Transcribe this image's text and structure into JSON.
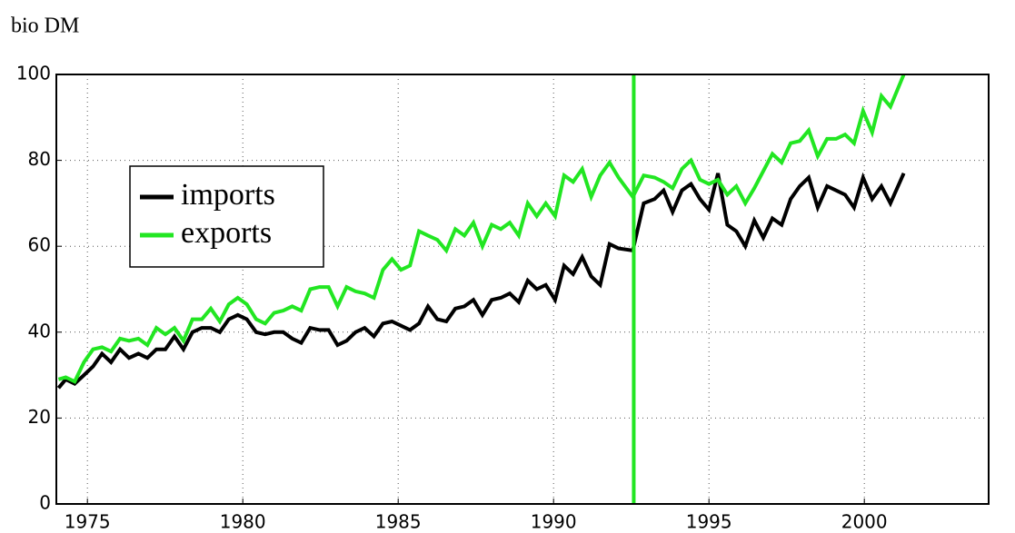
{
  "chart_data": {
    "type": "line",
    "title": "bio DM",
    "x": [
      1974.07,
      1974.3,
      1974.59,
      1974.89,
      1975.18,
      1975.47,
      1975.76,
      1976.05,
      1976.34,
      1976.64,
      1976.93,
      1977.22,
      1977.51,
      1977.8,
      1978.09,
      1978.38,
      1978.68,
      1978.97,
      1979.26,
      1979.55,
      1979.84,
      1980.13,
      1980.43,
      1980.72,
      1981.01,
      1981.3,
      1981.59,
      1981.88,
      1982.17,
      1982.47,
      1982.76,
      1983.05,
      1983.34,
      1983.63,
      1983.92,
      1984.22,
      1984.51,
      1984.8,
      1985.09,
      1985.38,
      1985.67,
      1985.96,
      1986.26,
      1986.55,
      1986.84,
      1987.13,
      1987.42,
      1987.71,
      1988.01,
      1988.3,
      1988.59,
      1988.88,
      1989.17,
      1989.46,
      1989.75,
      1990.05,
      1990.34,
      1990.63,
      1990.92,
      1991.21,
      1991.5,
      1991.8,
      1992.09,
      1992.55,
      1992.9,
      1993.25,
      1993.54,
      1993.83,
      1994.13,
      1994.42,
      1994.71,
      1995.0,
      1995.29,
      1995.59,
      1995.88,
      1996.17,
      1996.46,
      1996.75,
      1997.04,
      1997.34,
      1997.63,
      1997.92,
      1998.21,
      1998.5,
      1998.8,
      1999.09,
      1999.38,
      1999.67,
      1999.96,
      2000.25,
      2000.55,
      2000.84,
      2001.27
    ],
    "series": [
      {
        "name": "imports",
        "color": "#000000",
        "values": [
          27,
          29,
          28,
          30,
          32,
          35,
          33,
          36,
          34,
          35,
          34,
          36,
          36,
          39,
          36,
          40,
          41,
          41,
          40,
          43,
          44,
          43,
          40,
          39.5,
          40,
          40,
          38.5,
          37.5,
          41,
          40.5,
          40.5,
          37,
          38,
          40,
          41,
          39,
          42,
          42.5,
          41.5,
          40.5,
          42,
          46,
          43,
          42.5,
          45.5,
          46,
          47.5,
          44,
          47.5,
          48,
          49,
          47,
          52,
          50,
          51,
          47.5,
          55.5,
          53.5,
          57.5,
          53,
          51,
          60.5,
          59.5,
          59,
          70,
          71,
          73,
          68,
          73,
          74.5,
          71,
          68.5,
          77,
          65,
          63.5,
          60,
          66,
          62,
          66.5,
          65,
          71,
          74,
          76,
          69,
          74,
          73,
          72,
          69,
          76,
          71,
          74,
          70,
          77
        ]
      },
      {
        "name": "exports",
        "color": "#22e622",
        "values": [
          29,
          29.5,
          28.5,
          33,
          36,
          36.5,
          35.5,
          38.5,
          38,
          38.5,
          37,
          41,
          39.5,
          41,
          38,
          43,
          43,
          45.5,
          42.5,
          46.5,
          48,
          46.5,
          43,
          42,
          44.5,
          45,
          46,
          45,
          50,
          50.5,
          50.5,
          46,
          50.5,
          49.5,
          49,
          48,
          54.5,
          57,
          54.5,
          55.5,
          63.5,
          62.5,
          61.5,
          59,
          64,
          62.5,
          65.5,
          60,
          65,
          64,
          65.5,
          62.5,
          70,
          67,
          70,
          67,
          76.5,
          75,
          78,
          71.5,
          76.5,
          79.5,
          76,
          71.5,
          76.5,
          76,
          75,
          73.5,
          78,
          80,
          75.5,
          74.5,
          75.5,
          72,
          74,
          70,
          73.5,
          77.5,
          81.5,
          79.5,
          84,
          84.5,
          87,
          81,
          85,
          85,
          86,
          84,
          91.5,
          86.5,
          95,
          92.5,
          100
        ]
      }
    ],
    "vline": 1992.58,
    "vline_color": "#22e622",
    "xlim": [
      1974,
      2004
    ],
    "ylim": [
      0,
      100
    ],
    "xticks": [
      1975,
      1980,
      1985,
      1990,
      1995,
      2000
    ],
    "yticks": [
      0,
      20,
      40,
      60,
      80,
      100
    ],
    "grid": true,
    "legend": "upper left"
  }
}
